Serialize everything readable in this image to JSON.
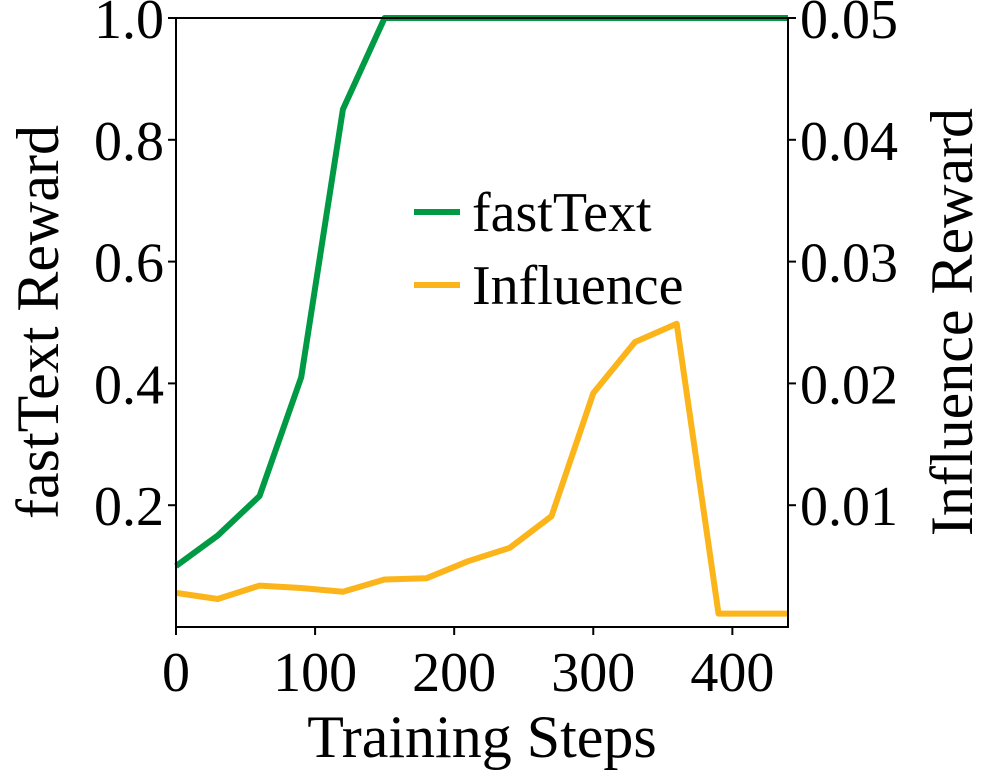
{
  "chart_data": {
    "type": "line",
    "title": "",
    "xlabel": "Training Steps",
    "ylabel_left": "fastText Reward",
    "ylabel_right": "Influence Reward",
    "xlim": [
      0,
      440
    ],
    "ylim_left": [
      0.0,
      1.0
    ],
    "ylim_right": [
      0.0,
      0.05
    ],
    "x_ticks": [
      0,
      100,
      200,
      300,
      400
    ],
    "x_tick_labels": [
      "0",
      "100",
      "200",
      "300",
      "400"
    ],
    "y_ticks_left": [
      0.2,
      0.4,
      0.6,
      0.8,
      1.0
    ],
    "y_tick_labels_left": [
      "0.2",
      "0.4",
      "0.6",
      "0.8",
      "1.0"
    ],
    "y_ticks_right": [
      0.01,
      0.02,
      0.03,
      0.04,
      0.05
    ],
    "y_tick_labels_right": [
      "0.01",
      "0.02",
      "0.03",
      "0.04",
      "0.05"
    ],
    "grid": false,
    "legend_position": "center-right",
    "series": [
      {
        "name": "fastText",
        "axis": "left",
        "color": "#009a44",
        "x": [
          0,
          30,
          60,
          90,
          120,
          150,
          180,
          210,
          240,
          270,
          300,
          330,
          360,
          390,
          420,
          440
        ],
        "y": [
          0.1,
          0.15,
          0.215,
          0.41,
          0.85,
          1.0,
          1.0,
          1.0,
          1.0,
          1.0,
          1.0,
          1.0,
          1.0,
          1.0,
          1.0,
          1.0
        ]
      },
      {
        "name": "Influence",
        "axis": "right",
        "color": "#fbb51a",
        "x": [
          0,
          30,
          60,
          90,
          120,
          150,
          180,
          210,
          240,
          270,
          300,
          330,
          360,
          390,
          420,
          440
        ],
        "y": [
          0.0028,
          0.0023,
          0.0034,
          0.0032,
          0.0029,
          0.0039,
          0.004,
          0.0054,
          0.0065,
          0.0091,
          0.0192,
          0.0234,
          0.0249,
          0.0011,
          0.0011,
          0.0011
        ]
      }
    ]
  }
}
